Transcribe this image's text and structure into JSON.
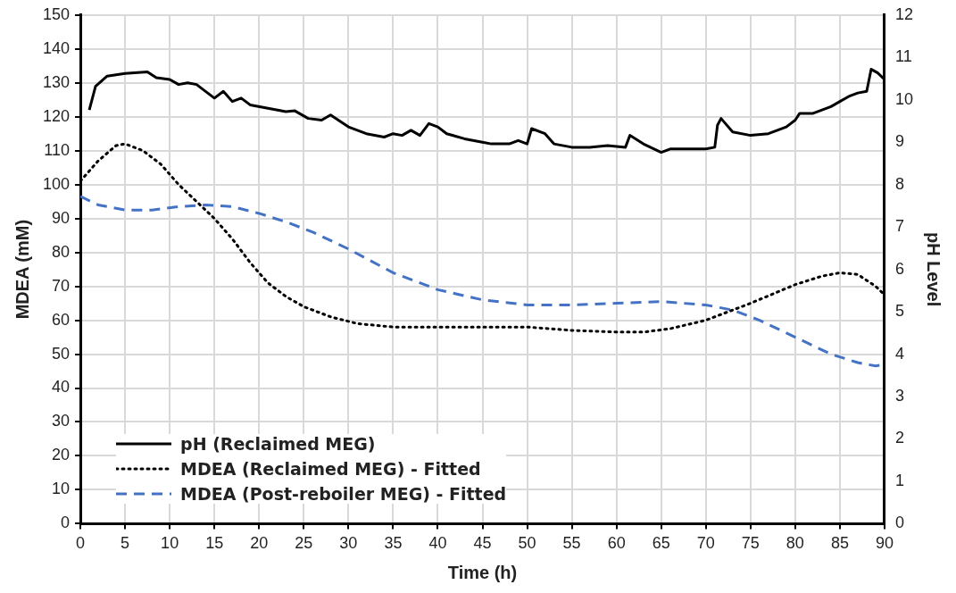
{
  "chart_data": {
    "type": "line",
    "xlabel": "Time (h)",
    "ylabel": "MDEA (mM)",
    "y2label": "pH Level",
    "xlim": [
      0,
      90
    ],
    "xticks": [
      0,
      5,
      10,
      15,
      20,
      25,
      30,
      35,
      40,
      45,
      50,
      55,
      60,
      65,
      70,
      75,
      80,
      85,
      90
    ],
    "ylim": [
      0,
      150
    ],
    "yticks": [
      0,
      10,
      20,
      30,
      40,
      50,
      60,
      70,
      80,
      90,
      100,
      110,
      120,
      130,
      140,
      150
    ],
    "y2lim": [
      0,
      12
    ],
    "y2ticks": [
      0,
      1,
      2,
      3,
      4,
      5,
      6,
      7,
      8,
      9,
      10,
      11,
      12
    ],
    "grid": true,
    "legend": "bottom left",
    "marker": "none",
    "series": [
      {
        "name": "pH (Reclaimed MEG)",
        "color": "#000000",
        "axis": "y2",
        "line_style": "solid",
        "x": [
          1,
          1.7,
          3,
          5,
          7.5,
          8.5,
          10,
          11,
          12,
          13,
          15,
          16,
          17,
          18,
          19,
          21,
          23,
          24,
          25.5,
          27,
          28,
          30,
          32,
          34,
          35,
          36,
          37,
          38,
          39,
          40,
          41,
          43,
          45,
          46,
          48,
          49,
          50,
          50.5,
          52,
          53,
          55,
          57,
          59,
          61,
          61.5,
          63,
          65,
          66,
          68,
          70,
          71,
          71.3,
          71.7,
          73,
          75,
          77,
          79,
          80,
          80.5,
          82,
          84,
          85,
          86,
          87,
          88,
          88.5,
          89.2,
          90
        ],
        "values": [
          9.76,
          10.32,
          10.56,
          10.62,
          10.66,
          10.52,
          10.48,
          10.36,
          10.4,
          10.36,
          10.04,
          10.2,
          9.96,
          10.04,
          9.88,
          9.8,
          9.72,
          9.74,
          9.56,
          9.52,
          9.64,
          9.36,
          9.2,
          9.12,
          9.2,
          9.16,
          9.28,
          9.16,
          9.44,
          9.36,
          9.2,
          9.08,
          9.0,
          8.96,
          8.96,
          9.04,
          8.96,
          9.32,
          9.2,
          8.96,
          8.88,
          8.88,
          8.92,
          8.88,
          9.16,
          8.96,
          8.76,
          8.84,
          8.84,
          8.84,
          8.88,
          9.4,
          9.56,
          9.24,
          9.16,
          9.2,
          9.36,
          9.52,
          9.68,
          9.68,
          9.84,
          9.96,
          10.08,
          10.16,
          10.2,
          10.72,
          10.64,
          10.48
        ]
      },
      {
        "name": "MDEA (Reclaimed MEG) - Fitted",
        "color": "#000000",
        "line_style": "dotted",
        "x": [
          0,
          2,
          4,
          5,
          7,
          9,
          11,
          13,
          15,
          17,
          19,
          21,
          23,
          25,
          28,
          31,
          35,
          40,
          45,
          50,
          55,
          60,
          63,
          66,
          70,
          75,
          80,
          83,
          85,
          87,
          89,
          90
        ],
        "values": [
          101,
          107,
          111.5,
          112,
          110,
          106,
          100,
          95,
          90,
          84,
          77,
          71,
          67,
          64,
          61,
          59,
          58,
          58,
          58,
          58,
          57,
          56.5,
          56.5,
          57.5,
          60,
          65,
          70.5,
          73,
          74,
          73.5,
          70,
          67.5
        ]
      },
      {
        "name": "MDEA (Post-reboiler MEG) - Fitted",
        "color": "#4472c4",
        "line_style": "dashed",
        "x": [
          0,
          2,
          5,
          8,
          11,
          14,
          17,
          20,
          23,
          26,
          30,
          35,
          40,
          45,
          50,
          55,
          60,
          65,
          70,
          73,
          76,
          80,
          84,
          87,
          89,
          90
        ],
        "values": [
          96.5,
          94,
          92.5,
          92.5,
          93.5,
          94,
          93.5,
          91.5,
          89,
          86,
          81,
          74,
          69,
          66,
          64.5,
          64.5,
          65,
          65.5,
          64.5,
          63,
          60,
          55,
          50,
          47.5,
          46.5,
          47
        ]
      }
    ]
  }
}
